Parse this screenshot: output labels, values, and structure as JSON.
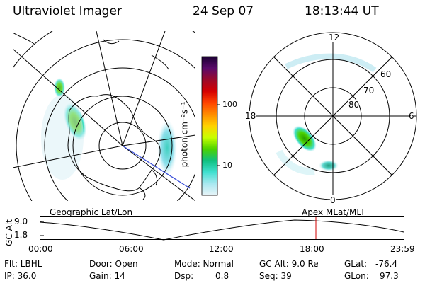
{
  "header": {
    "instrument": "Ultraviolet Imager",
    "date": "24 Sep 07",
    "time": "18:13:44 UT"
  },
  "colorbar": {
    "unit_label": "photon cm⁻²s⁻¹",
    "ticks": [
      "100",
      "10"
    ],
    "scale": "log",
    "colors": [
      "#1a0033",
      "#5a0a6a",
      "#9a0a2a",
      "#d40000",
      "#ff4400",
      "#ff8c00",
      "#ffd200",
      "#c8ff00",
      "#4cd200",
      "#10c080",
      "#40e0d0",
      "#a8e8f0",
      "#e8f4f8"
    ]
  },
  "left_map": {
    "caption": "Geographic Lat/Lon"
  },
  "right_map": {
    "caption": "Apex MLat/MLT",
    "mlt_labels": {
      "top": "12",
      "right": "6",
      "bottom": "0",
      "left": "18"
    },
    "lat_labels": [
      "60",
      "70",
      "80"
    ]
  },
  "altitude_plot": {
    "ylabel": "GC Alt",
    "yticks": [
      "9.0",
      "1.8"
    ],
    "xticks": [
      "00:00",
      "06:00",
      "12:00",
      "18:00",
      "23:59"
    ],
    "marker_color": "#d00000"
  },
  "status": {
    "flt": "Flt: LBHL",
    "ip": "IP: 36.0",
    "door": "Door: Open",
    "gain": "Gain: 14",
    "mode": "Mode: Normal",
    "dsp_label": "Dsp:",
    "dsp_value": "0.8",
    "gc_alt": "GC Alt: 9.0 Re",
    "seq": "Seq: 39",
    "glat_label": "GLat:",
    "glat_value": "-76.4",
    "glon_label": "GLon:",
    "glon_value": "97.3"
  }
}
